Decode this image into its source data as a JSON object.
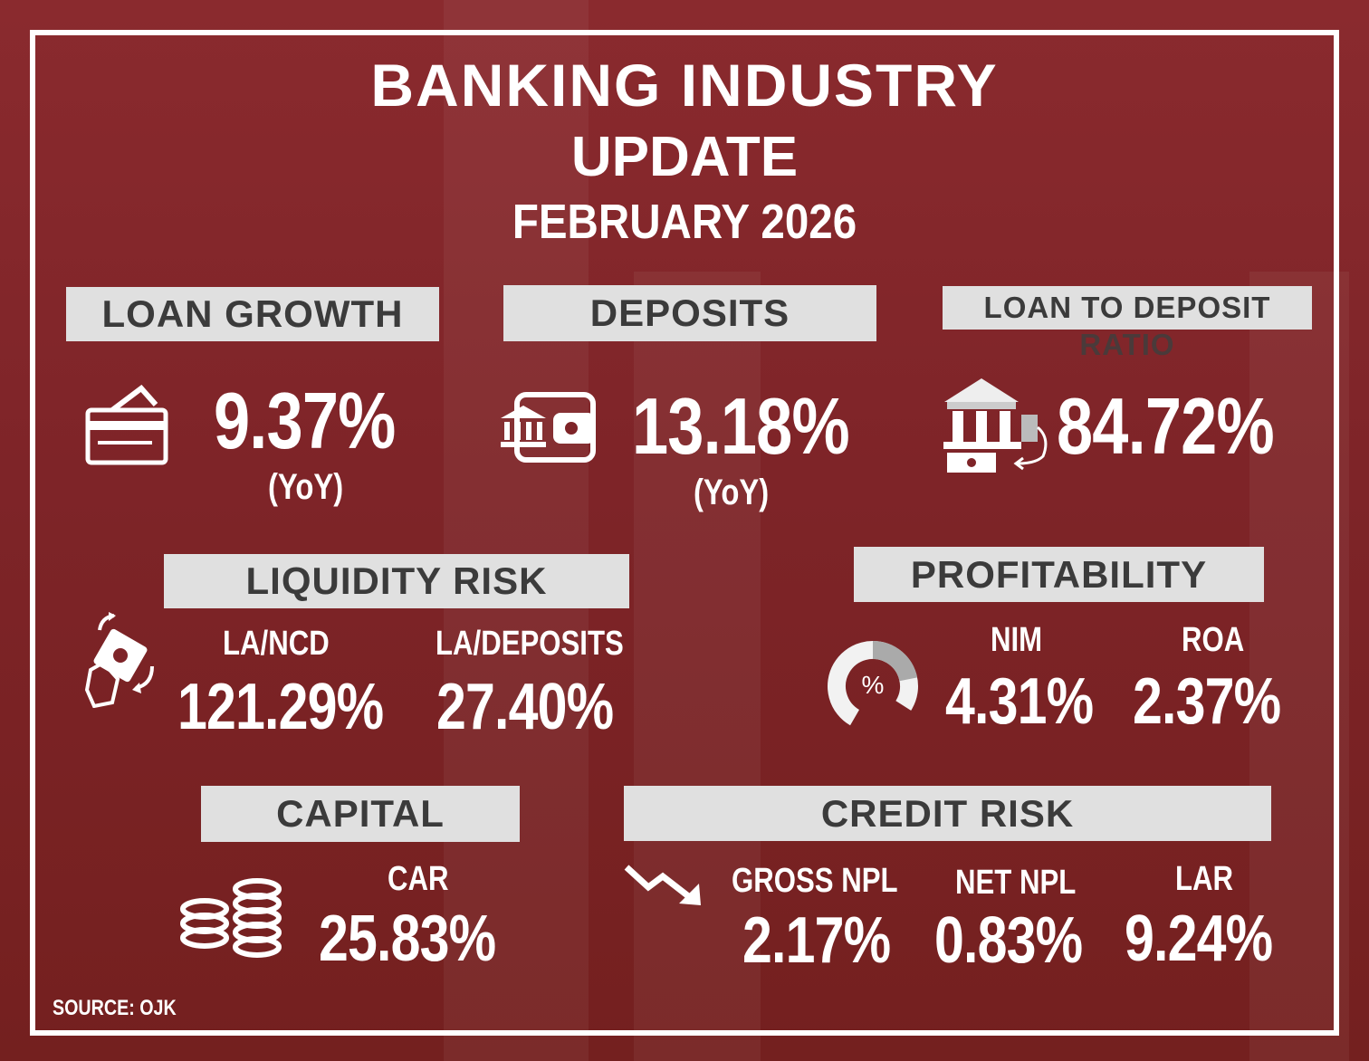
{
  "title": {
    "line1": "BANKING INDUSTRY",
    "line2": "UPDATE",
    "period": "FEBRUARY 2026"
  },
  "loan_growth": {
    "label": "LOAN GROWTH",
    "value": "9.37%",
    "note": "(YoY)",
    "icon": "credit-card-icon"
  },
  "deposits": {
    "label": "DEPOSITS",
    "value": "13.18%",
    "note": "(YoY)",
    "icon": "wallet-bank-icon"
  },
  "ldr": {
    "label_line1": "LOAN TO DEPOSIT",
    "label_line2": "RATIO",
    "value": "84.72%",
    "icon": "bank-money-transfer-icon"
  },
  "liquidity": {
    "label": "LIQUIDITY RISK",
    "icon": "hand-money-icon",
    "metrics": [
      {
        "name": "LA/NCD",
        "value": "121.29%"
      },
      {
        "name": "LA/DEPOSITS",
        "value": "27.40%"
      }
    ]
  },
  "profitability": {
    "label": "PROFITABILITY",
    "icon": "percent-donut-icon",
    "metrics": [
      {
        "name": "NIM",
        "value": "4.31%"
      },
      {
        "name": "ROA",
        "value": "2.37%"
      }
    ]
  },
  "capital": {
    "label": "CAPITAL",
    "icon": "coins-icon",
    "metrics": [
      {
        "name": "CAR",
        "value": "25.83%"
      }
    ]
  },
  "credit_risk": {
    "label": "CREDIT RISK",
    "icon": "trend-down-icon",
    "metrics": [
      {
        "name": "GROSS NPL",
        "value": "2.17%"
      },
      {
        "name": "NET NPL",
        "value": "0.83%"
      },
      {
        "name": "LAR",
        "value": "9.24%"
      }
    ]
  },
  "source": "SOURCE: OJK",
  "colors": {
    "background": "#7e2428",
    "label_bg": "#e0e0e0",
    "label_text": "#3b3b3b",
    "text": "#ffffff"
  }
}
